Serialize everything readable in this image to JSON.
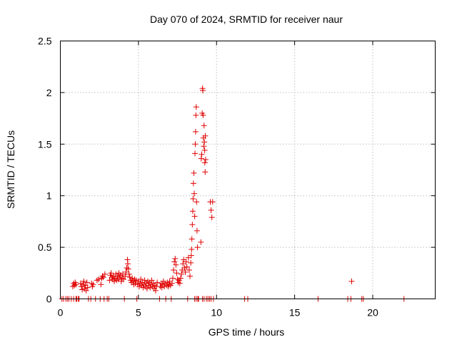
{
  "chart_data": {
    "type": "scatter",
    "title": "Day 070 of 2024, SRMTID for receiver naur",
    "xlabel": "GPS time / hours",
    "ylabel": "SRMTID / TECUs",
    "xlim": [
      0,
      24
    ],
    "ylim": [
      0,
      2.5
    ],
    "xticks": [
      0,
      5,
      10,
      15,
      20
    ],
    "xtick_labels": [
      "0",
      "5",
      "10",
      "15",
      "20"
    ],
    "yticks": [
      0,
      0.5,
      1,
      1.5,
      2,
      2.5
    ],
    "ytick_labels": [
      "0",
      "0.5",
      "1",
      "1.5",
      "2",
      "2.5"
    ],
    "grid": true,
    "marker": "+",
    "color": "#e00000",
    "series": [
      {
        "name": "SRMTID",
        "points": [
          [
            0.1,
            0
          ],
          [
            0.2,
            0
          ],
          [
            0.35,
            0
          ],
          [
            0.45,
            0
          ],
          [
            0.55,
            0
          ],
          [
            0.7,
            0
          ],
          [
            0.85,
            0
          ],
          [
            1.0,
            0
          ],
          [
            1.05,
            0
          ],
          [
            1.15,
            0
          ],
          [
            1.2,
            0
          ],
          [
            0.8,
            0.12
          ],
          [
            0.85,
            0.15
          ],
          [
            0.9,
            0.13
          ],
          [
            0.95,
            0.16
          ],
          [
            1.0,
            0.14
          ],
          [
            1.3,
            0.15
          ],
          [
            1.35,
            0.12
          ],
          [
            1.4,
            0.09
          ],
          [
            1.45,
            0.14
          ],
          [
            1.5,
            0.17
          ],
          [
            1.55,
            0.1
          ],
          [
            1.6,
            0.13
          ],
          [
            1.65,
            0.08
          ],
          [
            1.7,
            0.16
          ],
          [
            1.75,
            0.11
          ],
          [
            1.8,
            0
          ],
          [
            1.95,
            0
          ],
          [
            2.0,
            0.15
          ],
          [
            2.05,
            0.12
          ],
          [
            2.1,
            0.14
          ],
          [
            2.25,
            0
          ],
          [
            2.35,
            0.18
          ],
          [
            2.45,
            0.19
          ],
          [
            2.55,
            0
          ],
          [
            2.6,
            0.14
          ],
          [
            2.65,
            0.2
          ],
          [
            2.7,
            0.22
          ],
          [
            2.75,
            0.21
          ],
          [
            2.8,
            0
          ],
          [
            2.85,
            0.24
          ],
          [
            3.0,
            0
          ],
          [
            3.1,
            0
          ],
          [
            3.15,
            0.18
          ],
          [
            3.2,
            0.23
          ],
          [
            3.25,
            0.25
          ],
          [
            3.3,
            0.21
          ],
          [
            3.35,
            0.19
          ],
          [
            3.4,
            0.22
          ],
          [
            3.45,
            0.17
          ],
          [
            3.5,
            0.2
          ],
          [
            3.55,
            0.24
          ],
          [
            3.6,
            0.18
          ],
          [
            3.65,
            0.22
          ],
          [
            3.7,
            0.19
          ],
          [
            3.75,
            0.25
          ],
          [
            3.8,
            0.21
          ],
          [
            3.85,
            0.23
          ],
          [
            3.9,
            0.17
          ],
          [
            3.95,
            0.2
          ],
          [
            4.0,
            0.24
          ],
          [
            4.05,
            0.19
          ],
          [
            4.1,
            0
          ],
          [
            4.15,
            0.22
          ],
          [
            4.2,
            0.26
          ],
          [
            4.25,
            0.3
          ],
          [
            4.3,
            0.38
          ],
          [
            4.32,
            0.34
          ],
          [
            4.35,
            0.29
          ],
          [
            4.4,
            0.24
          ],
          [
            4.45,
            0.21
          ],
          [
            4.5,
            0.18
          ],
          [
            4.55,
            0.16
          ],
          [
            4.6,
            0.2
          ],
          [
            4.65,
            0.17
          ],
          [
            4.7,
            0.14
          ],
          [
            4.75,
            0.19
          ],
          [
            4.8,
            0.15
          ],
          [
            4.85,
            0.18
          ],
          [
            4.9,
            0
          ],
          [
            4.95,
            0.14
          ],
          [
            5.0,
            0.17
          ],
          [
            5.05,
            0.12
          ],
          [
            5.1,
            0.15
          ],
          [
            5.15,
            0.19
          ],
          [
            5.2,
            0.13
          ],
          [
            5.25,
            0.16
          ],
          [
            5.3,
            0.11
          ],
          [
            5.35,
            0.14
          ],
          [
            5.4,
            0.18
          ],
          [
            5.45,
            0.12
          ],
          [
            5.5,
            0.15
          ],
          [
            5.55,
            0.1
          ],
          [
            5.6,
            0.17
          ],
          [
            5.65,
            0.13
          ],
          [
            5.7,
            0.16
          ],
          [
            5.75,
            0.11
          ],
          [
            5.8,
            0.14
          ],
          [
            5.85,
            0.18
          ],
          [
            5.9,
            0.12
          ],
          [
            5.95,
            0.15
          ],
          [
            6.0,
            0.1
          ],
          [
            6.05,
            0.13
          ],
          [
            6.1,
            0.08
          ],
          [
            6.15,
            0.12
          ],
          [
            6.2,
            0.16
          ],
          [
            6.35,
            0
          ],
          [
            6.4,
            0.12
          ],
          [
            6.45,
            0.15
          ],
          [
            6.5,
            0.11
          ],
          [
            6.55,
            0.14
          ],
          [
            6.6,
            0.17
          ],
          [
            6.65,
            0.12
          ],
          [
            6.7,
            0.15
          ],
          [
            6.75,
            0
          ],
          [
            6.8,
            0.13
          ],
          [
            6.85,
            0.16
          ],
          [
            6.9,
            0.12
          ],
          [
            6.95,
            0.14
          ],
          [
            7.0,
            0.17
          ],
          [
            7.05,
            0.13
          ],
          [
            7.1,
            0
          ],
          [
            7.15,
            0.15
          ],
          [
            7.2,
            0.2
          ],
          [
            7.25,
            0.28
          ],
          [
            7.3,
            0.36
          ],
          [
            7.35,
            0.39
          ],
          [
            7.4,
            0.33
          ],
          [
            7.45,
            0.25
          ],
          [
            7.5,
            0.19
          ],
          [
            7.55,
            0.16
          ],
          [
            7.6,
            0.18
          ],
          [
            7.65,
            0.15
          ],
          [
            7.7,
            0.2
          ],
          [
            7.75,
            0.24
          ],
          [
            7.8,
            0.28
          ],
          [
            7.85,
            0.34
          ],
          [
            7.9,
            0.38
          ],
          [
            7.95,
            0.3
          ],
          [
            8.0,
            0.26
          ],
          [
            8.05,
            0.36
          ],
          [
            8.1,
            0.31
          ],
          [
            8.15,
            0
          ],
          [
            8.2,
            0.4
          ],
          [
            8.25,
            0.28
          ],
          [
            8.3,
            0.22
          ],
          [
            8.35,
            0.35
          ],
          [
            8.38,
            0.42
          ],
          [
            8.4,
            0.48
          ],
          [
            8.42,
            0.58
          ],
          [
            8.45,
            0.72
          ],
          [
            8.48,
            0.85
          ],
          [
            8.5,
            0.97
          ],
          [
            8.52,
            1.12
          ],
          [
            8.55,
            1.22
          ],
          [
            8.57,
            1.02
          ],
          [
            8.6,
            0.8
          ],
          [
            8.62,
            1.41
          ],
          [
            8.64,
            1.5
          ],
          [
            8.66,
            1.62
          ],
          [
            8.68,
            1.78
          ],
          [
            8.7,
            1.86
          ],
          [
            8.72,
            0.94
          ],
          [
            8.75,
            0.66
          ],
          [
            8.78,
            0.5
          ],
          [
            8.6,
            0
          ],
          [
            8.7,
            0
          ],
          [
            8.8,
            0
          ],
          [
            8.85,
            0
          ],
          [
            9.0,
            0.55
          ],
          [
            9.02,
            1.36
          ],
          [
            9.05,
            1.4
          ],
          [
            9.08,
            1.8
          ],
          [
            9.1,
            2.04
          ],
          [
            9.12,
            2.02
          ],
          [
            9.14,
            1.78
          ],
          [
            9.16,
            1.56
          ],
          [
            9.18,
            1.48
          ],
          [
            9.2,
            1.68
          ],
          [
            9.22,
            1.52
          ],
          [
            9.24,
            1.44
          ],
          [
            9.25,
            1.32
          ],
          [
            9.27,
            1.23
          ],
          [
            9.28,
            1.58
          ],
          [
            9.3,
            1.35
          ],
          [
            9.1,
            0
          ],
          [
            9.2,
            0
          ],
          [
            9.35,
            0
          ],
          [
            9.45,
            0
          ],
          [
            9.55,
            0
          ],
          [
            9.65,
            0
          ],
          [
            9.8,
            0
          ],
          [
            9.6,
            0.94
          ],
          [
            9.65,
            0.86
          ],
          [
            9.7,
            0.79
          ],
          [
            9.75,
            0.94
          ],
          [
            11.8,
            0
          ],
          [
            12.0,
            0
          ],
          [
            16.5,
            0
          ],
          [
            18.4,
            0
          ],
          [
            18.6,
            0
          ],
          [
            18.65,
            0.17
          ],
          [
            19.3,
            0
          ],
          [
            19.4,
            0
          ],
          [
            22.0,
            0
          ]
        ]
      }
    ]
  }
}
